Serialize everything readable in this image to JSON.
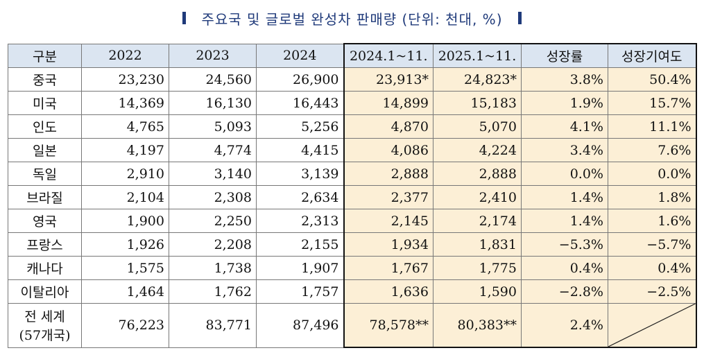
{
  "title": "주요국 및 글로벌 완성차 판매량 (단위: 천대, %)",
  "table": {
    "headers": [
      "구분",
      "2022",
      "2023",
      "2024",
      "2024.1~11.",
      "2025.1~11.",
      "성장률",
      "성장기여도"
    ],
    "rows": [
      {
        "country": "중국",
        "cells": [
          "23,230",
          "24,560",
          "26,900",
          "23,913*",
          "24,823*",
          "3.8%",
          "50.4%"
        ]
      },
      {
        "country": "미국",
        "cells": [
          "14,369",
          "16,130",
          "16,443",
          "14,899",
          "15,183",
          "1.9%",
          "15.7%"
        ]
      },
      {
        "country": "인도",
        "cells": [
          "4,765",
          "5,093",
          "5,256",
          "4,870",
          "5,070",
          "4.1%",
          "11.1%"
        ]
      },
      {
        "country": "일본",
        "cells": [
          "4,197",
          "4,774",
          "4,415",
          "4,086",
          "4,224",
          "3.4%",
          "7.6%"
        ]
      },
      {
        "country": "독일",
        "cells": [
          "2,910",
          "3,140",
          "3,139",
          "2,888",
          "2,888",
          "0.0%",
          "0.0%"
        ]
      },
      {
        "country": "브라질",
        "cells": [
          "2,104",
          "2,308",
          "2,634",
          "2,377",
          "2,410",
          "1.4%",
          "1.8%"
        ]
      },
      {
        "country": "영국",
        "cells": [
          "1,900",
          "2,250",
          "2,313",
          "2,145",
          "2,174",
          "1.4%",
          "1.6%"
        ]
      },
      {
        "country": "프랑스",
        "cells": [
          "1,926",
          "2,208",
          "2,155",
          "1,934",
          "1,831",
          "−5.3%",
          "−5.7%"
        ]
      },
      {
        "country": "캐나다",
        "cells": [
          "1,575",
          "1,738",
          "1,907",
          "1,767",
          "1,775",
          "0.4%",
          "0.4%"
        ]
      },
      {
        "country": "이탈리아",
        "cells": [
          "1,464",
          "1,762",
          "1,757",
          "1,636",
          "1,590",
          "−2.8%",
          "−2.5%"
        ]
      }
    ],
    "total": {
      "label_line1": "전 세계",
      "label_line2": "(57개국)",
      "cells": [
        "76,223",
        "83,771",
        "87,496",
        "78,578**",
        "80,383**",
        "2.4%"
      ]
    }
  },
  "colors": {
    "header_bg": "#dbe5f1",
    "highlight_bg": "#fcefd6",
    "title": "#1f3a7a"
  }
}
